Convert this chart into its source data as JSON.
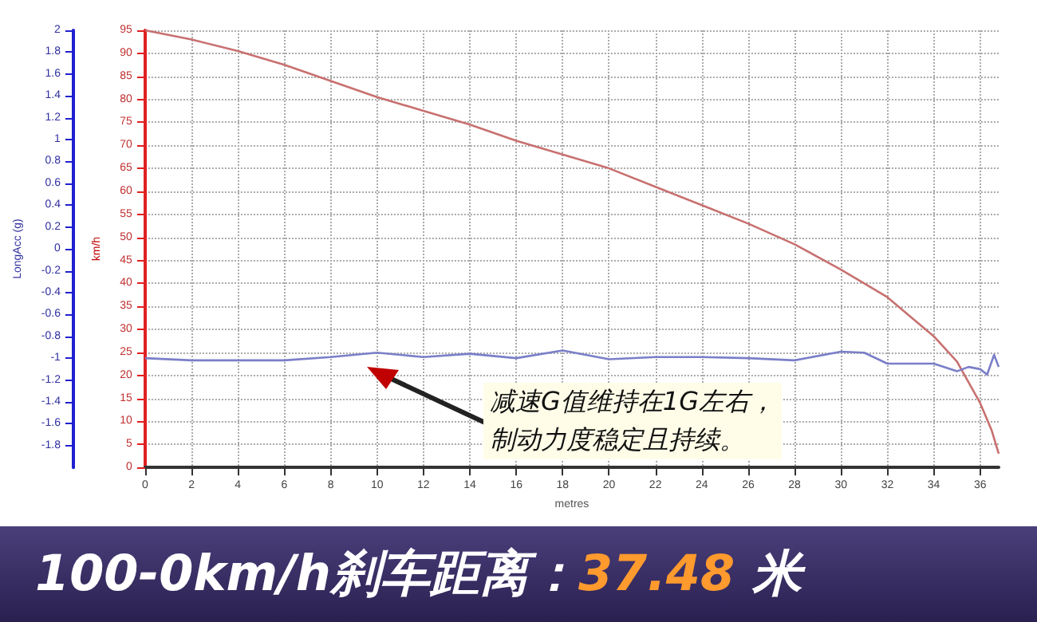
{
  "chart_data": {
    "type": "line",
    "title": "100-0km/h刹车距离：",
    "subtitle": "37.48 米",
    "xlabel": "metres",
    "ylabel": "km/h",
    "y2label": "LongAcc (g)",
    "annotations": [
      "减速G值维持在1G左右，",
      "制动力度稳定且持续。"
    ],
    "xlim": [
      0,
      36.8
    ],
    "xticks": [
      0,
      2,
      4,
      6,
      8,
      10,
      12,
      14,
      16,
      18,
      20,
      22,
      24,
      26,
      28,
      30,
      32,
      34,
      36
    ],
    "ylim": [
      0,
      95
    ],
    "yticks": [
      0,
      5,
      10,
      15,
      20,
      25,
      30,
      35,
      40,
      45,
      50,
      55,
      60,
      65,
      70,
      75,
      80,
      85,
      90,
      95
    ],
    "y2lim": [
      -2,
      2
    ],
    "y2ticks": [
      -1.8,
      -1.6,
      -1.4,
      -1.2,
      -1,
      -0.8,
      -0.6,
      -0.4,
      -0.2,
      0,
      0.2,
      0.4,
      0.6,
      0.8,
      1,
      1.2,
      1.4,
      1.6,
      1.8,
      2
    ],
    "grid": true,
    "marker": "none",
    "line_style": "solid",
    "series": [
      {
        "color": "#c87070",
        "x": [
          0,
          2,
          4,
          6,
          8,
          10,
          12,
          14,
          16,
          18,
          20,
          22,
          24,
          26,
          28,
          30,
          32,
          34,
          35,
          36,
          36.5,
          36.8
        ],
        "values": [
          95,
          93,
          90.5,
          87.5,
          84,
          80.5,
          77.5,
          74.5,
          71,
          68,
          65,
          61,
          57,
          53,
          48.5,
          43,
          37,
          28.5,
          23,
          14,
          8,
          3
        ]
      },
      {
        "color": "#7a7fc8",
        "axis": "y2",
        "x": [
          0,
          2,
          4,
          6,
          8,
          10,
          12,
          14,
          16,
          18,
          20,
          22,
          24,
          26,
          28,
          30,
          31,
          32,
          34,
          35,
          35.5,
          36,
          36.3,
          36.6,
          36.8
        ],
        "values": [
          -1.0,
          -1.02,
          -1.02,
          -1.02,
          -0.99,
          -0.95,
          -0.99,
          -0.96,
          -1.0,
          -0.93,
          -1.01,
          -0.99,
          -0.99,
          -1.0,
          -1.02,
          -0.94,
          -0.95,
          -1.05,
          -1.05,
          -1.12,
          -1.08,
          -1.1,
          -1.15,
          -0.97,
          -1.08
        ]
      }
    ]
  }
}
